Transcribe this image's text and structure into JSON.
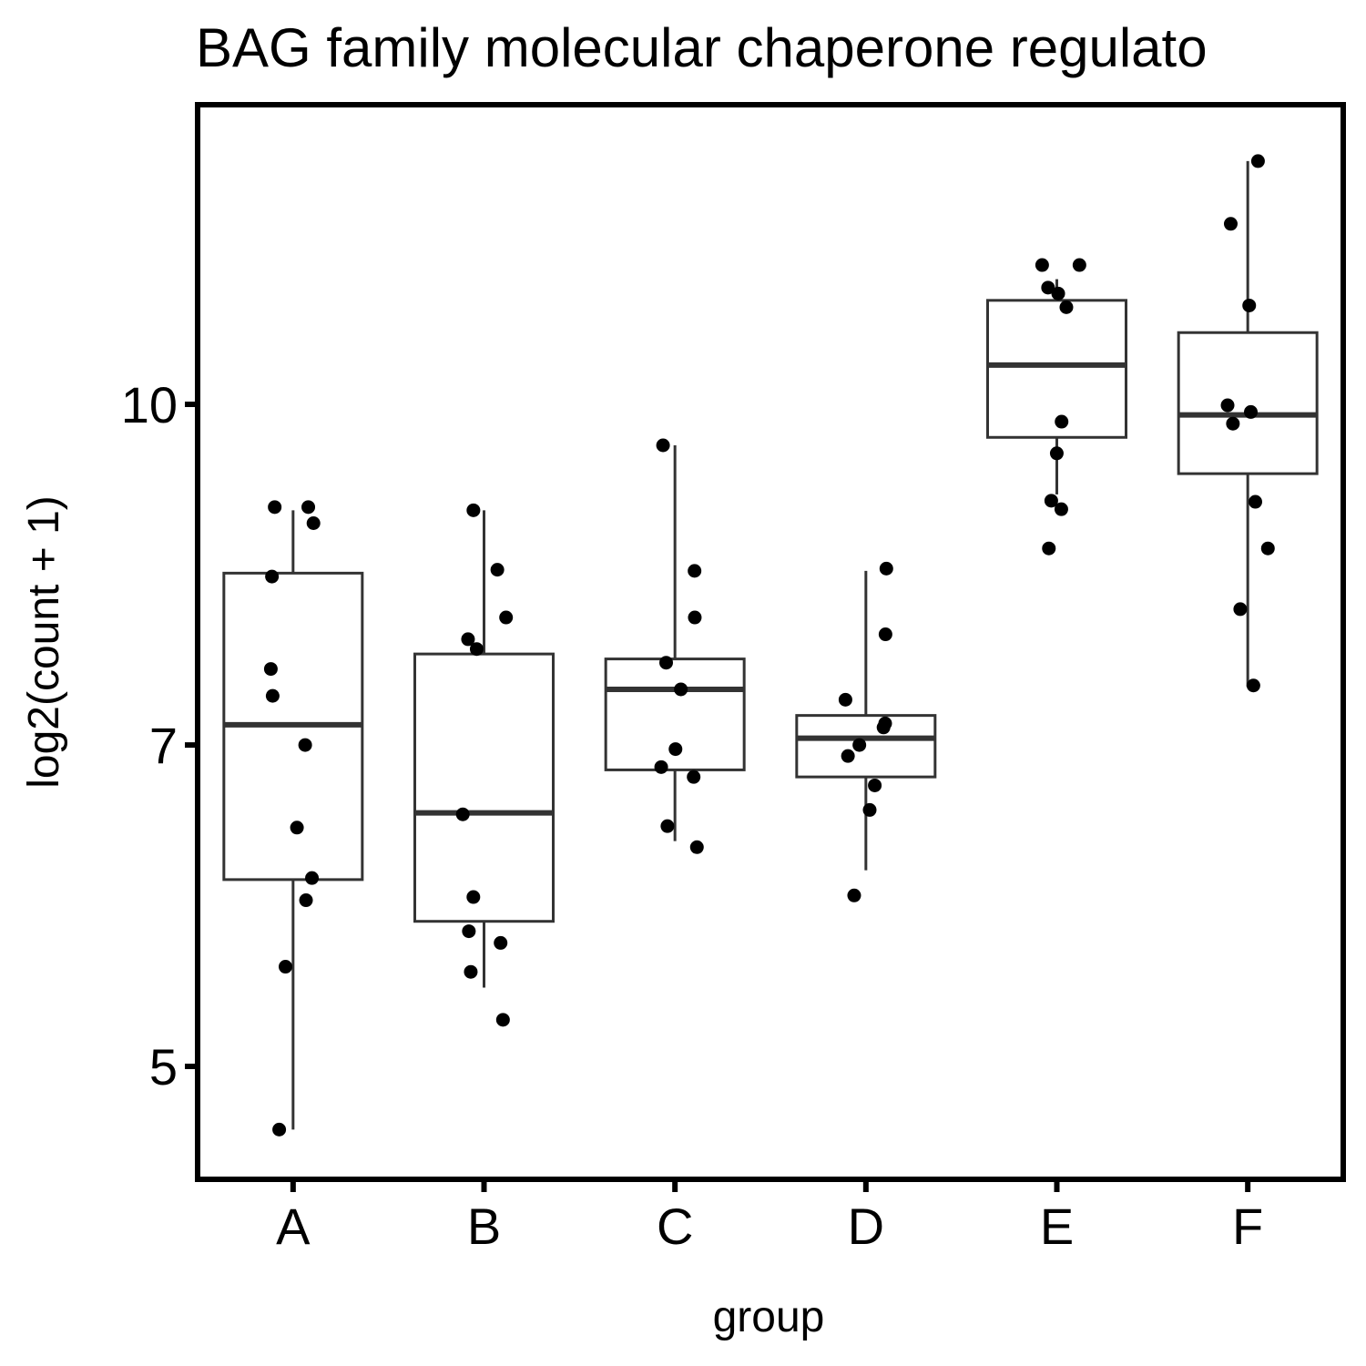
{
  "chart_data": {
    "type": "box",
    "title": "BAG family molecular chaperone regulato",
    "xlabel": "group",
    "ylabel": "log2(count + 1)",
    "y_scale": "log",
    "ylim": [
      4.5,
      12.9
    ],
    "yticks": [
      {
        "value": 5,
        "label": "5"
      },
      {
        "value": 7,
        "label": "7"
      },
      {
        "value": 10,
        "label": "10"
      }
    ],
    "categories": [
      "A",
      "B",
      "C",
      "D",
      "E",
      "F"
    ],
    "boxes": [
      {
        "group": "A",
        "whisker_low": 4.68,
        "q1": 6.08,
        "median": 7.15,
        "q3": 8.38,
        "whisker_high": 8.95
      },
      {
        "group": "B",
        "whisker_low": 5.43,
        "q1": 5.82,
        "median": 6.52,
        "q3": 7.7,
        "whisker_high": 8.95
      },
      {
        "group": "C",
        "whisker_low": 6.33,
        "q1": 6.82,
        "median": 7.42,
        "q3": 7.66,
        "whisker_high": 9.58
      },
      {
        "group": "D",
        "whisker_low": 6.14,
        "q1": 6.77,
        "median": 7.05,
        "q3": 7.22,
        "whisker_high": 8.4
      },
      {
        "group": "E",
        "whisker_low": 9.1,
        "q1": 9.66,
        "median": 10.42,
        "q3": 11.15,
        "whisker_high": 11.4
      },
      {
        "group": "F",
        "whisker_low": 7.44,
        "q1": 9.3,
        "median": 9.89,
        "q3": 10.78,
        "whisker_high": 12.9
      }
    ],
    "points": [
      {
        "group": "A",
        "y": [
          8.98,
          8.98,
          8.83,
          8.35,
          7.58,
          7.37,
          7.0,
          6.42,
          6.09,
          5.95,
          5.55,
          4.68
        ]
      },
      {
        "group": "B",
        "y": [
          8.95,
          8.41,
          8.0,
          7.82,
          7.74,
          6.51,
          5.97,
          5.76,
          5.69,
          5.52,
          5.25
        ]
      },
      {
        "group": "C",
        "y": [
          9.58,
          8.4,
          8.0,
          7.63,
          7.42,
          6.97,
          6.84,
          6.77,
          6.43,
          6.29
        ]
      },
      {
        "group": "D",
        "y": [
          8.42,
          7.86,
          7.34,
          7.16,
          7.13,
          7.0,
          6.92,
          6.71,
          6.54,
          5.98
        ]
      },
      {
        "group": "E",
        "y": [
          11.57,
          11.57,
          11.3,
          11.23,
          11.07,
          9.82,
          9.5,
          9.04,
          8.96,
          8.6
        ]
      },
      {
        "group": "F",
        "y": [
          12.9,
          12.08,
          11.09,
          9.99,
          9.92,
          9.8,
          9.03,
          8.6,
          8.07,
          7.45
        ]
      }
    ]
  }
}
